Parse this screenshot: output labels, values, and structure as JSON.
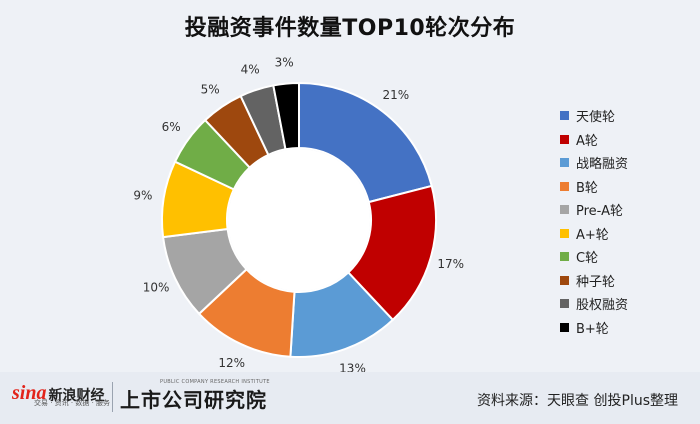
{
  "title": "投融资事件数量TOP10轮次分布",
  "chart_data": {
    "type": "donut",
    "title": "投融资事件数量TOP10轮次分布",
    "categories": [
      "天使轮",
      "A轮",
      "战略融资",
      "B轮",
      "Pre-A轮",
      "A+轮",
      "C轮",
      "种子轮",
      "股权融资",
      "B+轮"
    ],
    "values": [
      21,
      17,
      13,
      12,
      10,
      9,
      6,
      5,
      4,
      3
    ],
    "labels": [
      "21%",
      "17%",
      "13%",
      "12%",
      "10%",
      "9%",
      "6%",
      "5%",
      "4%",
      "3%"
    ],
    "colors": [
      "#4472c4",
      "#c00000",
      "#5b9bd5",
      "#ed7d31",
      "#a5a5a5",
      "#ffc000",
      "#70ad47",
      "#9e480e",
      "#636363",
      "#000000"
    ],
    "legend_position": "right"
  },
  "footer": {
    "sina_logo": "sina",
    "sina_name": "新浪财经",
    "sina_tagline": "交易 · 资讯 · 数据 · 服务",
    "institute_name": "上市公司研究院",
    "institute_en": "PUBLIC COMPANY RESEARCH INSTITUTE",
    "source": "资料来源：天眼查 创投Plus整理"
  }
}
